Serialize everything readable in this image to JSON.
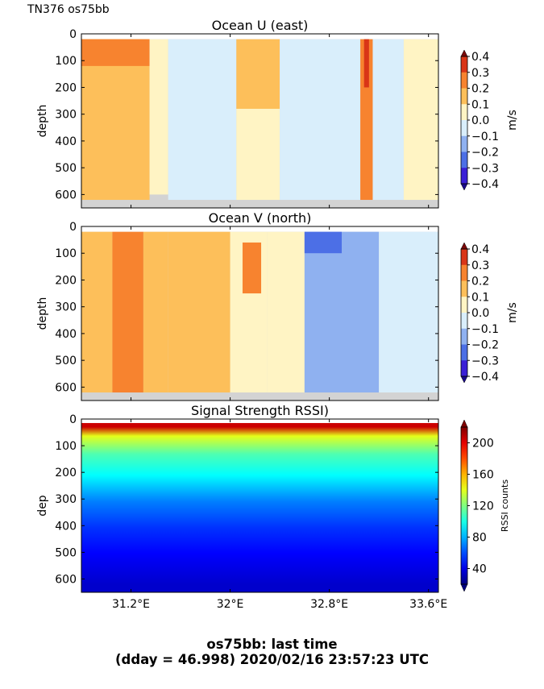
{
  "figure": {
    "corner_label": "TN376 os75bb",
    "footer_line1": "os75bb: last time",
    "footer_line2": "(dday = 46.998) 2020/02/16 23:57:23 UTC"
  },
  "chart_data": [
    {
      "type": "heatmap",
      "title": "Ocean U (east)",
      "xlabel": "",
      "ylabel": "depth",
      "x_range": [
        30.8,
        33.68
      ],
      "x_ticks": [
        31.2,
        32.0,
        32.8,
        33.6
      ],
      "y_range": [
        650,
        0
      ],
      "y_ticks": [
        0,
        100,
        200,
        300,
        400,
        500,
        600
      ],
      "y_tick_labels": [
        "0",
        "100",
        "200",
        "300",
        "400",
        "500",
        "600"
      ],
      "colorbar": {
        "label": "m/s",
        "min": -0.4,
        "max": 0.4,
        "ticks": [
          "0.4",
          "0.3",
          "0.2",
          "0.1",
          "0.0",
          "−0.1",
          "−0.2",
          "−0.3",
          "−0.4"
        ]
      },
      "colormap": "jet-diverging",
      "bottom_mask_color": "#d3d3d3",
      "regions": [
        {
          "x": [
            30.8,
            31.35
          ],
          "depth": [
            20,
            620
          ],
          "value": 0.15
        },
        {
          "x": [
            30.8,
            31.35
          ],
          "depth": [
            20,
            120
          ],
          "value": 0.25
        },
        {
          "x": [
            31.35,
            31.5
          ],
          "depth": [
            20,
            600
          ],
          "value": 0.05
        },
        {
          "x": [
            31.5,
            32.05
          ],
          "depth": [
            20,
            620
          ],
          "value": -0.05
        },
        {
          "x": [
            32.05,
            32.4
          ],
          "depth": [
            20,
            280
          ],
          "value": 0.15
        },
        {
          "x": [
            32.05,
            32.4
          ],
          "depth": [
            280,
            620
          ],
          "value": 0.05
        },
        {
          "x": [
            32.4,
            33.05
          ],
          "depth": [
            20,
            620
          ],
          "value": -0.05
        },
        {
          "x": [
            33.05,
            33.15
          ],
          "depth": [
            20,
            620
          ],
          "value": 0.25
        },
        {
          "x": [
            33.08,
            33.12
          ],
          "depth": [
            20,
            200
          ],
          "value": 0.35
        },
        {
          "x": [
            33.15,
            33.4
          ],
          "depth": [
            20,
            620
          ],
          "value": -0.05
        },
        {
          "x": [
            33.4,
            33.68
          ],
          "depth": [
            20,
            620
          ],
          "value": 0.05
        }
      ]
    },
    {
      "type": "heatmap",
      "title": "Ocean V (north)",
      "xlabel": "",
      "ylabel": "depth",
      "x_range": [
        30.8,
        33.68
      ],
      "x_ticks": [
        31.2,
        32.0,
        32.8,
        33.6
      ],
      "y_range": [
        650,
        0
      ],
      "y_ticks": [
        0,
        100,
        200,
        300,
        400,
        500,
        600
      ],
      "y_tick_labels": [
        "0",
        "100",
        "200",
        "300",
        "400",
        "500",
        "600"
      ],
      "colorbar": {
        "label": "m/s",
        "min": -0.4,
        "max": 0.4,
        "ticks": [
          "0.4",
          "0.3",
          "0.2",
          "0.1",
          "0.0",
          "−0.1",
          "−0.2",
          "−0.3",
          "−0.4"
        ]
      },
      "colormap": "jet-diverging",
      "bottom_mask_color": "#d3d3d3",
      "regions": [
        {
          "x": [
            30.8,
            31.05
          ],
          "depth": [
            20,
            620
          ],
          "value": 0.15
        },
        {
          "x": [
            31.05,
            31.3
          ],
          "depth": [
            20,
            620
          ],
          "value": 0.25
        },
        {
          "x": [
            31.3,
            31.5
          ],
          "depth": [
            20,
            620
          ],
          "value": 0.15
        },
        {
          "x": [
            31.5,
            32.0
          ],
          "depth": [
            20,
            620
          ],
          "value": 0.15
        },
        {
          "x": [
            32.0,
            32.3
          ],
          "depth": [
            20,
            620
          ],
          "value": 0.05
        },
        {
          "x": [
            32.1,
            32.25
          ],
          "depth": [
            60,
            250
          ],
          "value": 0.25
        },
        {
          "x": [
            32.3,
            32.6
          ],
          "depth": [
            20,
            620
          ],
          "value": 0.05
        },
        {
          "x": [
            32.6,
            33.2
          ],
          "depth": [
            20,
            620
          ],
          "value": -0.15
        },
        {
          "x": [
            32.6,
            32.9
          ],
          "depth": [
            20,
            100
          ],
          "value": -0.25
        },
        {
          "x": [
            33.2,
            33.68
          ],
          "depth": [
            20,
            620
          ],
          "value": -0.05
        }
      ]
    },
    {
      "type": "heatmap",
      "title": "Signal Strength RSSI)",
      "xlabel": "",
      "ylabel": "dep",
      "x_range": [
        30.8,
        33.68
      ],
      "x_ticks": [
        31.2,
        32.0,
        32.8,
        33.6
      ],
      "x_tick_labels": [
        "31.2°E",
        "32°E",
        "32.8°E",
        "33.6°E"
      ],
      "y_range": [
        650,
        0
      ],
      "y_ticks": [
        0,
        100,
        200,
        300,
        400,
        500,
        600
      ],
      "y_tick_labels": [
        "0",
        "100",
        "200",
        "300",
        "400",
        "500",
        "600"
      ],
      "colorbar": {
        "label": "RSSI counts",
        "min": 20,
        "max": 220,
        "ticks": [
          "200",
          "160",
          "120",
          "80",
          "40"
        ]
      },
      "colormap": "jet",
      "profile": [
        {
          "depth": 15,
          "value": 205
        },
        {
          "depth": 50,
          "value": 140
        },
        {
          "depth": 120,
          "value": 110
        },
        {
          "depth": 200,
          "value": 95
        },
        {
          "depth": 300,
          "value": 70
        },
        {
          "depth": 400,
          "value": 55
        },
        {
          "depth": 500,
          "value": 45
        },
        {
          "depth": 620,
          "value": 35
        }
      ]
    }
  ]
}
